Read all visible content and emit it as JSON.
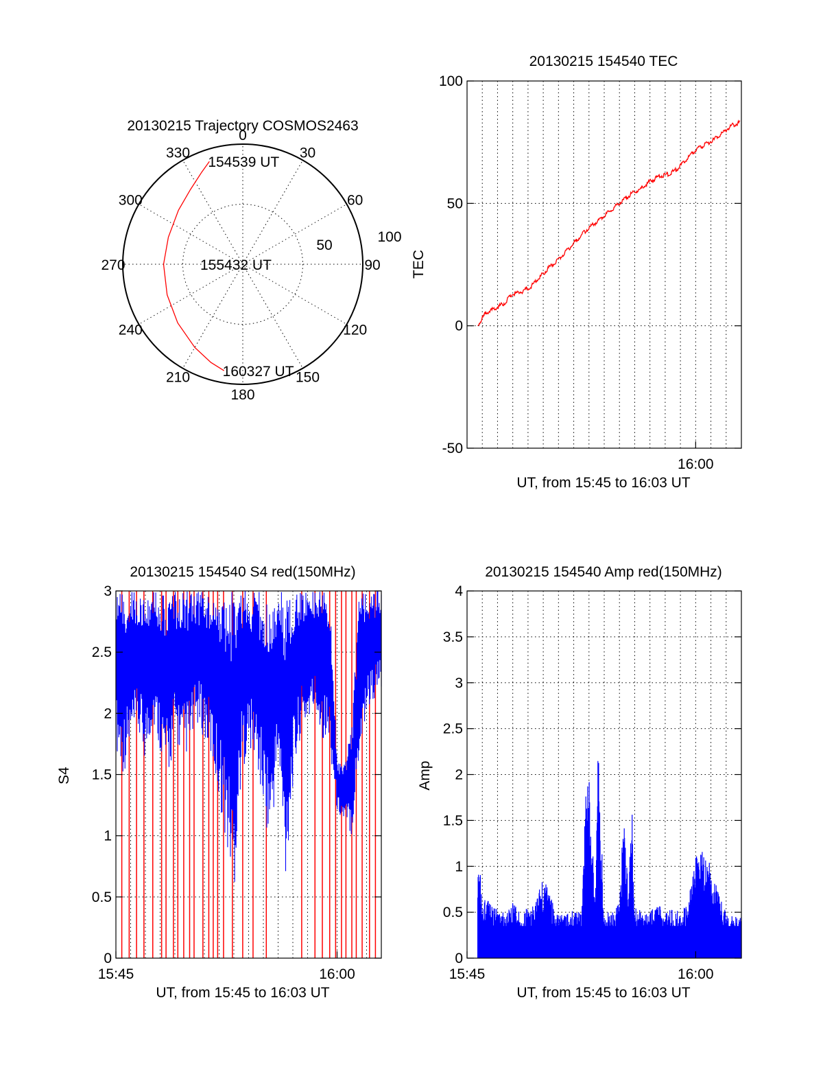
{
  "chart_data": [
    {
      "type": "polar",
      "title": "20130215 Trajectory COSMOS2463",
      "azimuth_labels": [
        "0",
        "30",
        "60",
        "90",
        "120",
        "150",
        "180",
        "210",
        "240",
        "270",
        "300",
        "330"
      ],
      "radial_labels": [
        "50",
        "100"
      ],
      "rlim": [
        0,
        100
      ],
      "grid": true,
      "annotations": [
        {
          "text": "154539 UT",
          "az": 342,
          "r": 90
        },
        {
          "text": "155432 UT",
          "az": 270,
          "r": 0
        },
        {
          "text": "160327 UT",
          "az": 190,
          "r": 90
        }
      ],
      "series": [
        {
          "color": "#ff0000",
          "az": [
            342,
            336,
            325,
            310,
            290,
            270,
            248,
            228,
            210,
            198,
            190
          ],
          "r": [
            90,
            84,
            76,
            70,
            66,
            66,
            68,
            73,
            80,
            86,
            90
          ]
        }
      ]
    },
    {
      "type": "line",
      "title": "20130215 154540 TEC",
      "xlabel": "UT, from 15:45 to 16:03 UT",
      "ylabel": "TEC",
      "xlim": [
        0,
        18
      ],
      "ylim": [
        -50,
        100
      ],
      "xticks": [
        {
          "x": 15,
          "label": "16:00"
        }
      ],
      "yticks": [
        "-50",
        "0",
        "50",
        "100"
      ],
      "grid": true,
      "series": [
        {
          "color": "#ff0000",
          "x": [
            0.7,
            1.2,
            1.8,
            2.4,
            3.0,
            3.6,
            4.2,
            4.8,
            5.4,
            6.0,
            6.6,
            7.2,
            7.8,
            8.4,
            9.0,
            9.6,
            10.2,
            10.8,
            11.4,
            12.0,
            12.6,
            13.2,
            13.8,
            14.4,
            15.0,
            15.6,
            16.2,
            16.8,
            17.4,
            17.9
          ],
          "y": [
            0,
            5,
            7,
            9,
            13,
            14,
            16,
            20,
            24,
            27,
            31,
            35,
            39,
            42,
            45,
            48,
            51,
            54,
            56,
            59,
            61,
            62,
            64,
            68,
            72,
            74,
            76,
            79,
            82,
            83
          ]
        }
      ]
    },
    {
      "type": "line",
      "title": "20130215 154540 S4 red(150MHz)",
      "xlabel": "UT, from 15:45 to 16:03 UT",
      "ylabel": "S4",
      "xlim": [
        0,
        18
      ],
      "ylim": [
        0,
        3
      ],
      "xticks": [
        {
          "x": 0,
          "label": "15:45"
        },
        {
          "x": 15,
          "label": "16:00"
        }
      ],
      "yticks": [
        "0",
        "0.5",
        "1",
        "1.5",
        "2",
        "2.5",
        "3"
      ],
      "grid": true,
      "series": [
        {
          "color": "#ff0000",
          "spikes_x": [
            0.4,
            0.9,
            1.4,
            1.9,
            2.5,
            3.1,
            3.4,
            3.9,
            4.2,
            4.6,
            5.0,
            5.3,
            5.9,
            6.3,
            6.6,
            6.9,
            7.3,
            7.9,
            8.6,
            9.3,
            10.2,
            12.6,
            13.5,
            14.0,
            14.5,
            14.9,
            15.3,
            15.6,
            16.0,
            16.3,
            16.7,
            17.2,
            17.6
          ],
          "min_y": 0,
          "max_y": 3
        },
        {
          "color": "#0000ff",
          "x": [
            0,
            0.5,
            1,
            1.5,
            2,
            2.5,
            3,
            3.5,
            4,
            4.5,
            5,
            5.5,
            6,
            6.5,
            7,
            7.5,
            8,
            8.5,
            9,
            9.5,
            10,
            10.5,
            11,
            11.5,
            12,
            12.5,
            13,
            13.5,
            14,
            14.5,
            15,
            15.5,
            16,
            16.5,
            17,
            17.5,
            18
          ],
          "min": [
            1.7,
            1.5,
            1.7,
            1.8,
            1.6,
            1.9,
            1.7,
            1.4,
            1.8,
            1.6,
            1.7,
            1.9,
            1.8,
            1.6,
            1.3,
            0.9,
            0.5,
            1.5,
            1.7,
            1.6,
            1.2,
            0.9,
            1.6,
            0.6,
            1.4,
            1.8,
            1.9,
            2.0,
            1.8,
            1.7,
            1.2,
            1.1,
            1.0,
            1.6,
            2.0,
            2.1,
            2.2
          ],
          "max": [
            3,
            3,
            3,
            3,
            3,
            3,
            3,
            3,
            3,
            3,
            3,
            3,
            3,
            3,
            3,
            3,
            3,
            3,
            3,
            3,
            3,
            3,
            3,
            3,
            3,
            3,
            3,
            3,
            3,
            3,
            1.6,
            1.6,
            1.9,
            3,
            3,
            3,
            3
          ]
        }
      ]
    },
    {
      "type": "area",
      "title": "20130215 154540 Amp red(150MHz)",
      "xlabel": "UT, from 15:45 to 16:03 UT",
      "ylabel": "Amp",
      "xlim": [
        0,
        18
      ],
      "ylim": [
        0,
        4
      ],
      "xticks": [
        {
          "x": 0,
          "label": "15:45"
        },
        {
          "x": 15,
          "label": "16:00"
        }
      ],
      "yticks": [
        "0",
        "0.5",
        "1",
        "1.5",
        "2",
        "2.5",
        "3",
        "3.5",
        "4"
      ],
      "grid": true,
      "series": [
        {
          "color": "#0000ff",
          "x": [
            0.7,
            1.0,
            1.5,
            2.0,
            2.5,
            3.0,
            3.5,
            4.0,
            4.5,
            5.0,
            5.5,
            6.0,
            6.5,
            7.0,
            7.5,
            7.8,
            8.0,
            8.4,
            8.6,
            9.0,
            9.5,
            10.0,
            10.3,
            10.6,
            10.8,
            11.0,
            11.5,
            12.0,
            12.5,
            13.0,
            13.5,
            14.0,
            14.5,
            15.0,
            15.5,
            16.0,
            16.5,
            17.0,
            17.5,
            18.0
          ],
          "y": [
            1.2,
            0.7,
            0.6,
            0.55,
            0.5,
            0.6,
            0.5,
            0.55,
            0.6,
            0.9,
            0.7,
            0.5,
            0.5,
            0.55,
            0.5,
            1.9,
            2.2,
            0.6,
            2.3,
            0.5,
            0.5,
            0.6,
            1.7,
            0.6,
            1.9,
            0.6,
            0.5,
            0.55,
            0.6,
            0.5,
            0.55,
            0.5,
            0.6,
            1.1,
            1.2,
            1.0,
            0.7,
            0.5,
            0.45,
            0.45
          ]
        }
      ]
    }
  ]
}
